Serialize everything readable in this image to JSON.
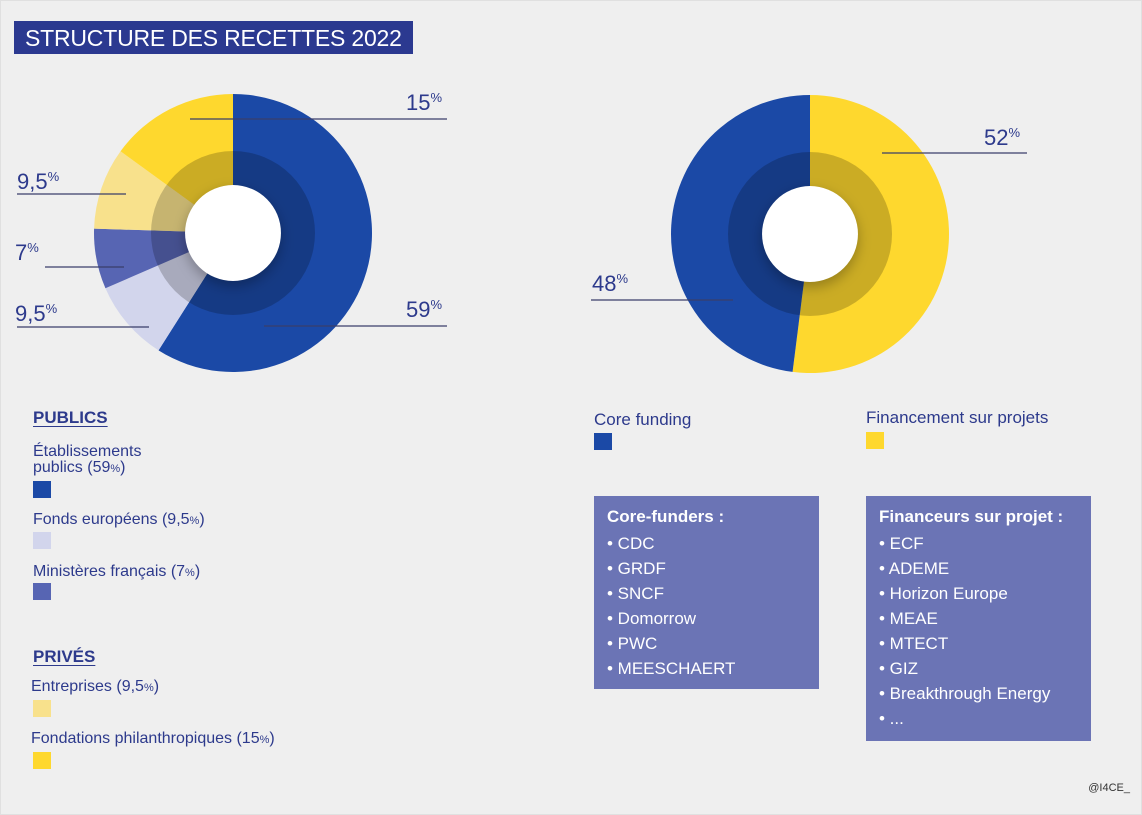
{
  "title": "STRUCTURE DES RECETTES 2022",
  "colors": {
    "dark_blue": "#1b49a6",
    "light_lavender": "#d2d5ec",
    "medium_blue": "#5765b3",
    "light_yellow": "#f8e18c",
    "yellow": "#fed82e",
    "box_bg": "#6b74b5",
    "text": "#2d3a8c"
  },
  "chart_data": [
    {
      "type": "pie",
      "slices": [
        {
          "label": "Établissements publics",
          "value": 59,
          "display": "59",
          "color": "#1b49a6"
        },
        {
          "label": "Fonds européens",
          "value": 9.5,
          "display": "9,5",
          "color": "#d2d5ec"
        },
        {
          "label": "Ministères français",
          "value": 7,
          "display": "7",
          "color": "#5765b3"
        },
        {
          "label": "Entreprises",
          "value": 9.5,
          "display": "9,5",
          "color": "#f8e18c"
        },
        {
          "label": "Fondations philanthropiques",
          "value": 15,
          "display": "15",
          "color": "#fed82e"
        }
      ],
      "unit": "%"
    },
    {
      "type": "pie",
      "slices": [
        {
          "label": "Financement sur projets",
          "value": 52,
          "display": "52",
          "color": "#fed82e"
        },
        {
          "label": "Core funding",
          "value": 48,
          "display": "48",
          "color": "#1b49a6"
        }
      ],
      "unit": "%"
    }
  ],
  "legend_left": {
    "publics_heading": "PUBLICS",
    "prives_heading": "PRIVÉS",
    "items": [
      {
        "line1": "Établissements",
        "line2": "publics (59",
        "pct": "%",
        "close": ")"
      },
      {
        "text": "Fonds européens (9,5",
        "pct": "%",
        "close": ")"
      },
      {
        "text": "Ministères français (7",
        "pct": "%",
        "close": ")"
      },
      {
        "text": "Entreprises (9,5",
        "pct": "%",
        "close": ")"
      },
      {
        "text": "Fondations philanthropiques (15",
        "pct": "%",
        "close": ")"
      }
    ]
  },
  "legend_right": {
    "core": "Core funding",
    "projets": "Financement sur projets"
  },
  "core_box": {
    "title": "Core-funders :",
    "items": [
      "• CDC",
      "• GRDF",
      "• SNCF",
      "• Domorrow",
      "• PWC",
      "• MEESCHAERT"
    ]
  },
  "projet_box": {
    "title": "Financeurs sur projet :",
    "items": [
      "• ECF",
      "• ADEME",
      "• Horizon Europe",
      "• MEAE",
      "• MTECT",
      "• GIZ",
      "• Breakthrough Energy",
      "• ..."
    ]
  },
  "credit": "@I4CE_"
}
